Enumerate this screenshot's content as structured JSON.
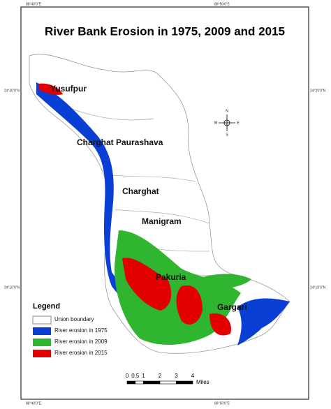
{
  "title": "River Bank Erosion in 1975, 2009 and 2015",
  "graticule": {
    "top": [
      "88°40'0\"E",
      "88°50'0\"E"
    ],
    "bottom": [
      "88°40'0\"E",
      "88°50'0\"E"
    ],
    "left": [
      "24°20'0\"N",
      "24°10'0\"N"
    ],
    "right": [
      "24°20'0\"N",
      "24°10'0\"N"
    ]
  },
  "places": [
    "Yusufpur",
    "Charghat Paurashava",
    "Charghat",
    "Manigram",
    "Pakuria",
    "Gargari"
  ],
  "north_arrow": {
    "n": "N",
    "s": "S",
    "e": "E",
    "w": "W"
  },
  "legend": {
    "title": "Legend",
    "items": [
      "Union boundary",
      "River erosion in 1975",
      "River erosion in 2009",
      "River erosion in 2015"
    ]
  },
  "scale_bar": {
    "ticks": [
      0,
      0.5,
      1,
      2,
      3,
      4
    ],
    "unit": "Miles"
  }
}
